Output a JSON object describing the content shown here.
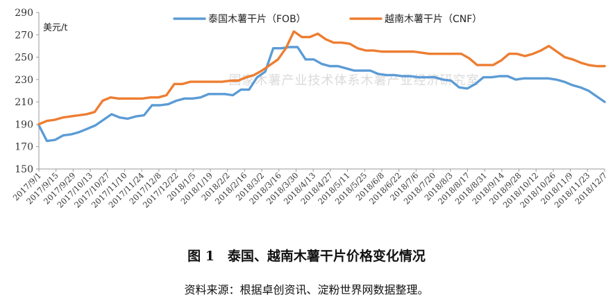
{
  "chart_data": {
    "type": "line",
    "unit_label": "美元/t",
    "watermark": "国家木薯产业技术体系木薯产业经济研究室",
    "ylim": [
      150,
      290
    ],
    "yticks": [
      150,
      170,
      190,
      210,
      230,
      250,
      270,
      290
    ],
    "x_tick_labels": [
      "2017/9/1",
      "2017/9/15",
      "2017/9/29",
      "2017/10/13",
      "2017/10/27",
      "2017/11/10",
      "2017/11/24",
      "2017/12/8",
      "2017/12/22",
      "2018/1/5",
      "2018/1/19",
      "2018/2/2",
      "2018/2/16",
      "2018/3/2",
      "2018/3/16",
      "2018/3/30",
      "2018/4/13",
      "2018/4/27",
      "2018/5/11",
      "2018/5/25",
      "2018/6/8",
      "2018/6/22",
      "2018/7/6",
      "2018/7/20",
      "2018/8/3",
      "2018/8/17",
      "2018/8/31",
      "2018/9/14",
      "2018/9/28",
      "2018/10/12",
      "2018/10/26",
      "2018/11/9",
      "2018/11/23",
      "2018/12/7"
    ],
    "legend_position": "top",
    "grid": false,
    "series": [
      {
        "name": "泰国木薯干片（FOB）",
        "color": "#5b9bd5",
        "values": [
          189,
          175,
          176,
          180,
          181,
          183,
          186,
          189,
          194,
          199,
          196,
          195,
          197,
          198,
          207,
          207,
          208,
          211,
          213,
          213,
          214,
          217,
          217,
          217,
          216,
          221,
          221,
          232,
          237,
          258,
          258,
          259,
          259,
          248,
          248,
          244,
          242,
          242,
          240,
          238,
          238,
          238,
          235,
          234,
          234,
          233,
          233,
          232,
          232,
          232,
          230,
          229,
          223,
          222,
          226,
          232,
          232,
          233,
          233,
          230,
          231,
          231,
          231,
          231,
          230,
          228,
          225,
          223,
          220,
          215,
          210
        ],
        "stroke": "#5b9bd5"
      },
      {
        "name": "越南木薯干片（CNF）",
        "color": "#ed7d31",
        "values": [
          190,
          193,
          194,
          196,
          197,
          198,
          199,
          201,
          211,
          214,
          213,
          213,
          213,
          213,
          214,
          214,
          216,
          226,
          226,
          228,
          228,
          228,
          228,
          228,
          229,
          229,
          232,
          234,
          238,
          243,
          248,
          258,
          273,
          268,
          268,
          271,
          266,
          263,
          263,
          262,
          258,
          256,
          256,
          255,
          255,
          255,
          255,
          255,
          254,
          253,
          253,
          253,
          253,
          253,
          249,
          243,
          243,
          243,
          247,
          253,
          253,
          251,
          253,
          256,
          260,
          255,
          250,
          248,
          245,
          243,
          242,
          242
        ]
      }
    ]
  },
  "caption": "图 1　泰国、越南木薯干片价格变化情况",
  "source": "资料来源：根据卓创资讯、淀粉世界网数据整理。"
}
